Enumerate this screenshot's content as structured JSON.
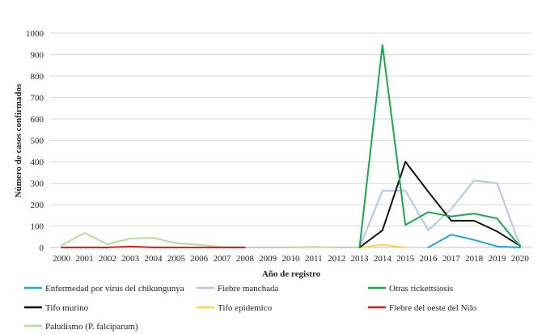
{
  "chart_data": {
    "type": "line",
    "title": "",
    "xlabel": "Año de registro",
    "ylabel": "Número de casos confirmados",
    "x": [
      "2000",
      "2001",
      "2002",
      "2003",
      "2004",
      "2005",
      "2006",
      "2007",
      "2008",
      "2009",
      "2010",
      "2011",
      "2012",
      "2013",
      "2014",
      "2015",
      "2016",
      "2017",
      "2018",
      "2019",
      "2020"
    ],
    "ylim": [
      0,
      1000
    ],
    "yticks": [
      "0",
      "100",
      "200",
      "300",
      "400",
      "500",
      "600",
      "700",
      "800",
      "900",
      "1000"
    ],
    "grid": "horizontal",
    "legend_position": "bottom",
    "series": [
      {
        "name": "Enfermedad por virus del chikungunya",
        "color": "#1fa9d8",
        "values": [
          null,
          null,
          null,
          null,
          null,
          null,
          null,
          null,
          null,
          null,
          null,
          null,
          null,
          null,
          null,
          null,
          0,
          60,
          35,
          5,
          0
        ]
      },
      {
        "name": "Fiebre manchada",
        "color": "#b4c6e7",
        "values": [
          null,
          null,
          null,
          null,
          null,
          null,
          null,
          null,
          null,
          null,
          null,
          null,
          null,
          0,
          265,
          265,
          80,
          180,
          312,
          300,
          10
        ]
      },
      {
        "name": "Otras rickettsiosis",
        "color": "#1aa84c",
        "values": [
          null,
          null,
          null,
          null,
          null,
          null,
          null,
          null,
          null,
          null,
          null,
          null,
          null,
          0,
          945,
          105,
          165,
          145,
          158,
          135,
          5
        ]
      },
      {
        "name": "Tifo murino",
        "color": "#111111",
        "values": [
          null,
          null,
          null,
          null,
          null,
          null,
          null,
          null,
          null,
          null,
          null,
          null,
          null,
          0,
          80,
          400,
          260,
          125,
          125,
          75,
          8
        ]
      },
      {
        "name": "Tifo epidemico",
        "color": "#ffd54a",
        "values": [
          null,
          null,
          null,
          null,
          null,
          null,
          null,
          null,
          null,
          null,
          null,
          null,
          null,
          0,
          12,
          0,
          null,
          null,
          null,
          null,
          null
        ]
      },
      {
        "name": "Fiebre del oeste del Nilo",
        "color": "#e02020",
        "values": [
          0,
          0,
          0,
          5,
          0,
          0,
          0,
          0,
          0,
          null,
          null,
          null,
          null,
          null,
          null,
          null,
          null,
          null,
          null,
          null,
          null
        ]
      },
      {
        "name": "Paludismo (P. falciparum)",
        "color": "#b6dba2",
        "values": [
          10,
          68,
          15,
          42,
          45,
          20,
          12,
          2,
          0,
          0,
          0,
          3,
          0,
          0,
          null,
          null,
          null,
          null,
          null,
          null,
          null
        ]
      }
    ]
  }
}
